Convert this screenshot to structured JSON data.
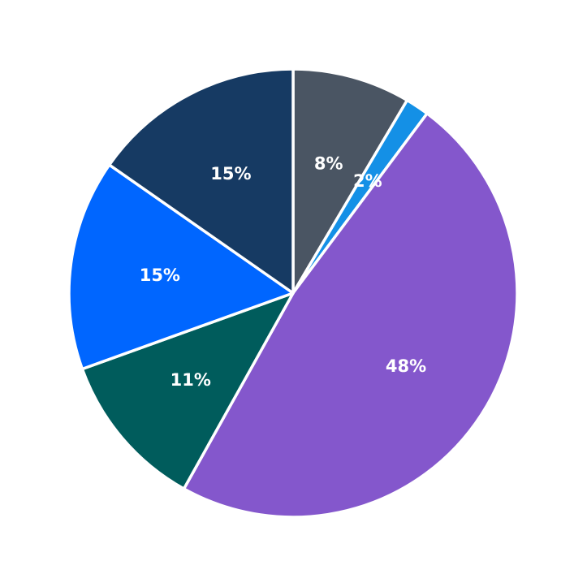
{
  "chart_data": {
    "type": "pie",
    "title": "",
    "start_angle_deg": 90,
    "direction": "clockwise",
    "slices": [
      {
        "label": "8%",
        "value": 8.5,
        "color": "#4a5563"
      },
      {
        "label": "2%",
        "value": 1.7,
        "color": "#1490e6"
      },
      {
        "label": "48%",
        "value": 47.9,
        "color": "#8457cc"
      },
      {
        "label": "11%",
        "value": 11.4,
        "color": "#005c5c"
      },
      {
        "label": "15%",
        "value": 15.2,
        "color": "#0066ff"
      },
      {
        "label": "15%",
        "value": 15.3,
        "color": "#163a63"
      }
    ],
    "legend": "none"
  }
}
